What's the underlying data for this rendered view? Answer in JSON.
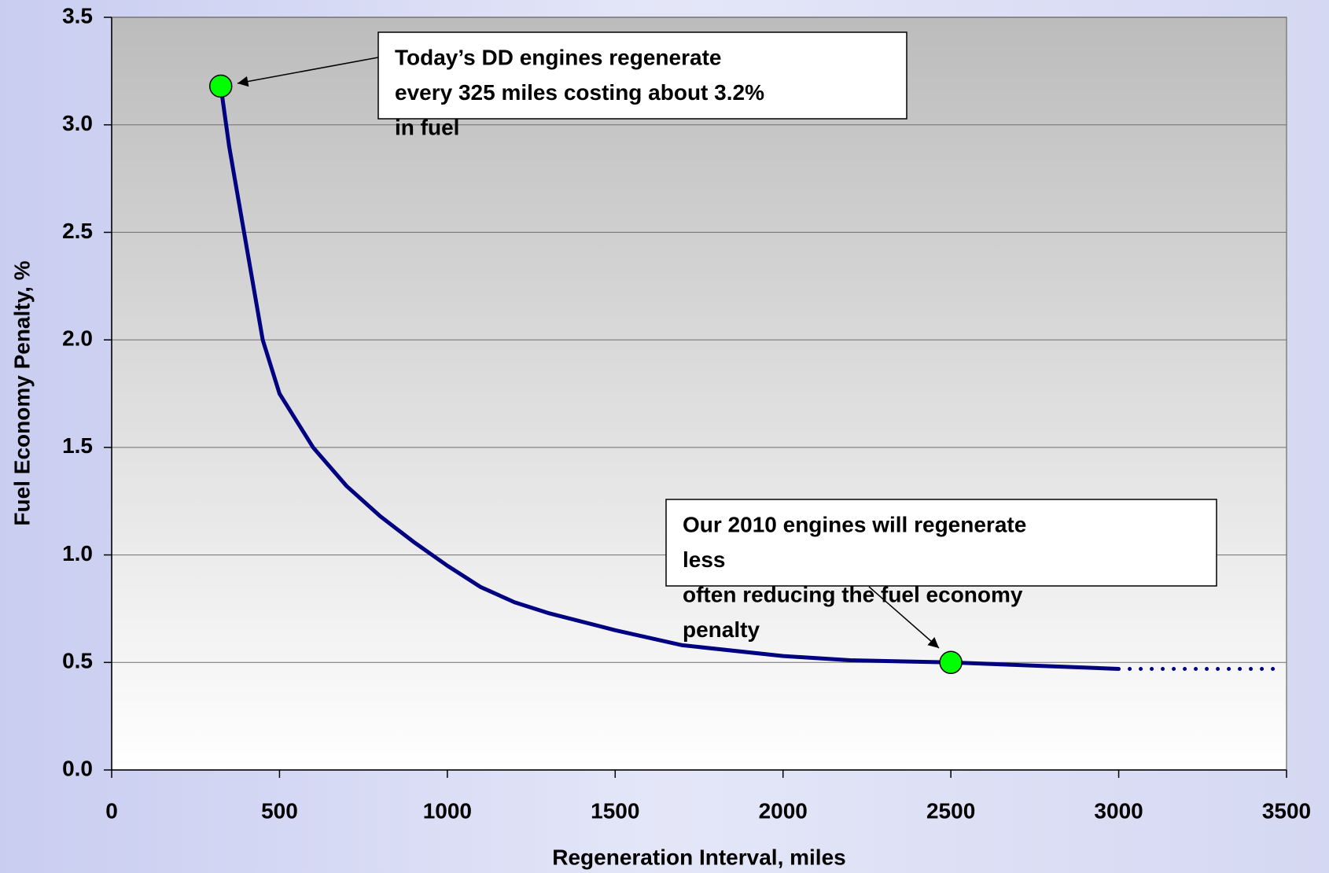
{
  "chart_data": {
    "type": "line",
    "xlabel": "Regeneration Interval, miles",
    "ylabel": "Fuel Economy Penalty, %",
    "x": [
      325,
      350,
      400,
      450,
      500,
      600,
      700,
      800,
      900,
      1000,
      1100,
      1200,
      1300,
      1500,
      1700,
      2000,
      2200,
      2500,
      3000
    ],
    "series": [
      {
        "color": "#000080",
        "values": [
          3.18,
          2.9,
          2.45,
          2.0,
          1.75,
          1.5,
          1.32,
          1.18,
          1.06,
          0.95,
          0.85,
          0.78,
          0.73,
          0.65,
          0.58,
          0.53,
          0.51,
          0.5,
          0.47
        ]
      }
    ],
    "extension": {
      "color": "#000080",
      "style": "dotted",
      "x": [
        3000,
        3470
      ],
      "values": [
        0.47,
        0.47
      ]
    },
    "points": [
      {
        "x": 325,
        "y": 3.18,
        "color": "#00ff00"
      },
      {
        "x": 2500,
        "y": 0.5,
        "color": "#00ff00"
      }
    ],
    "annotations": [
      {
        "lines": [
          "Today’s DD engines regenerate",
          "every 325 miles costing about 3.2%",
          "in fuel"
        ]
      },
      {
        "lines": [
          "Our 2010 engines will regenerate",
          "less",
          "often reducing the fuel economy",
          "penalty"
        ]
      }
    ],
    "xlim": [
      0,
      3500
    ],
    "xticks": [
      0,
      500,
      1000,
      1500,
      2000,
      2500,
      3000,
      3500
    ],
    "ylim": [
      0,
      3.5
    ],
    "yticks": [
      {
        "value": 0,
        "label": "0.0"
      },
      {
        "value": 0.5,
        "label": "0.5"
      },
      {
        "value": 1,
        "label": "1.0"
      },
      {
        "value": 1.5,
        "label": "1.5"
      },
      {
        "value": 2,
        "label": "2.0"
      },
      {
        "value": 2.5,
        "label": "2.5"
      },
      {
        "value": 3,
        "label": "3.0"
      },
      {
        "value": 3.5,
        "label": "3.5"
      }
    ],
    "grid": true
  }
}
